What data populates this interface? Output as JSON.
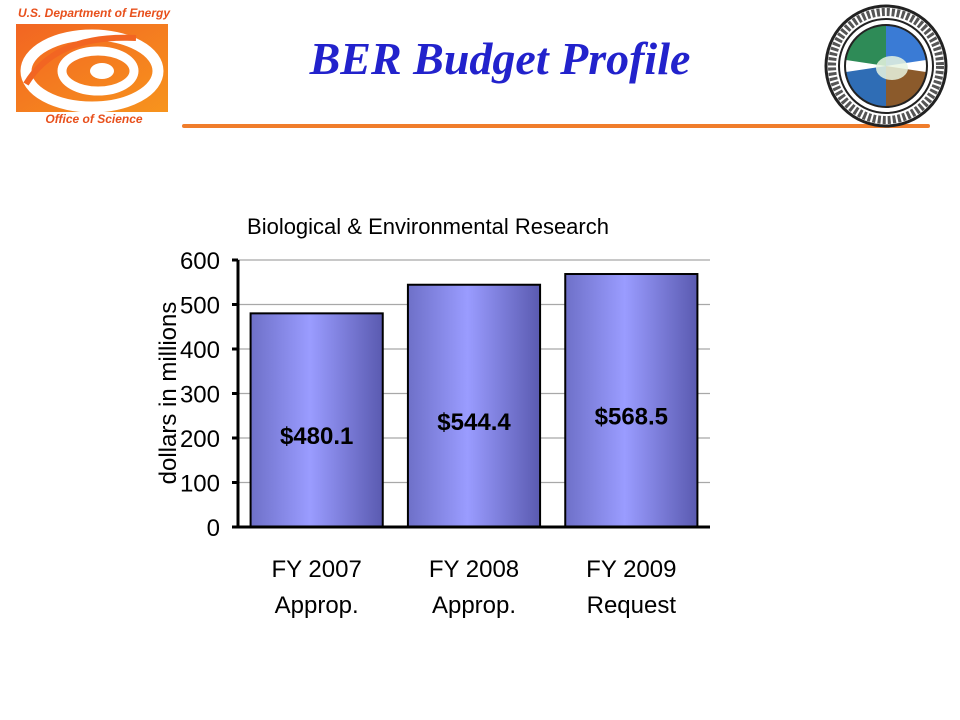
{
  "header": {
    "agency": "U.S. Department of Energy",
    "office": "Office of Science",
    "title": "BER Budget Profile"
  },
  "colors": {
    "title": "#2222cc",
    "accent_rule": "#f07d2b",
    "logo_orange": "#e8501c",
    "bar_fill_light": "#9a9cff",
    "bar_fill_dark": "#5a5ab0",
    "grid": "#a8a8a8"
  },
  "icons": {
    "left_logo": "doe-office-of-science-logo",
    "right_logo": "doe-ber-program-seal"
  },
  "chart_data": {
    "type": "bar",
    "title": "Biological & Environmental Research",
    "xlabel": "",
    "ylabel": "dollars in millions",
    "categories": [
      [
        "FY 2007",
        "Approp."
      ],
      [
        "FY 2008",
        "Approp."
      ],
      [
        "FY 2009",
        "Request"
      ]
    ],
    "values": [
      480.1,
      544.4,
      568.5
    ],
    "data_labels": [
      "$480.1",
      "$544.4",
      "$568.5"
    ],
    "ylim": [
      0,
      600
    ],
    "yticks": [
      0,
      100,
      200,
      300,
      400,
      500,
      600
    ],
    "grid": true,
    "legend": "none"
  }
}
